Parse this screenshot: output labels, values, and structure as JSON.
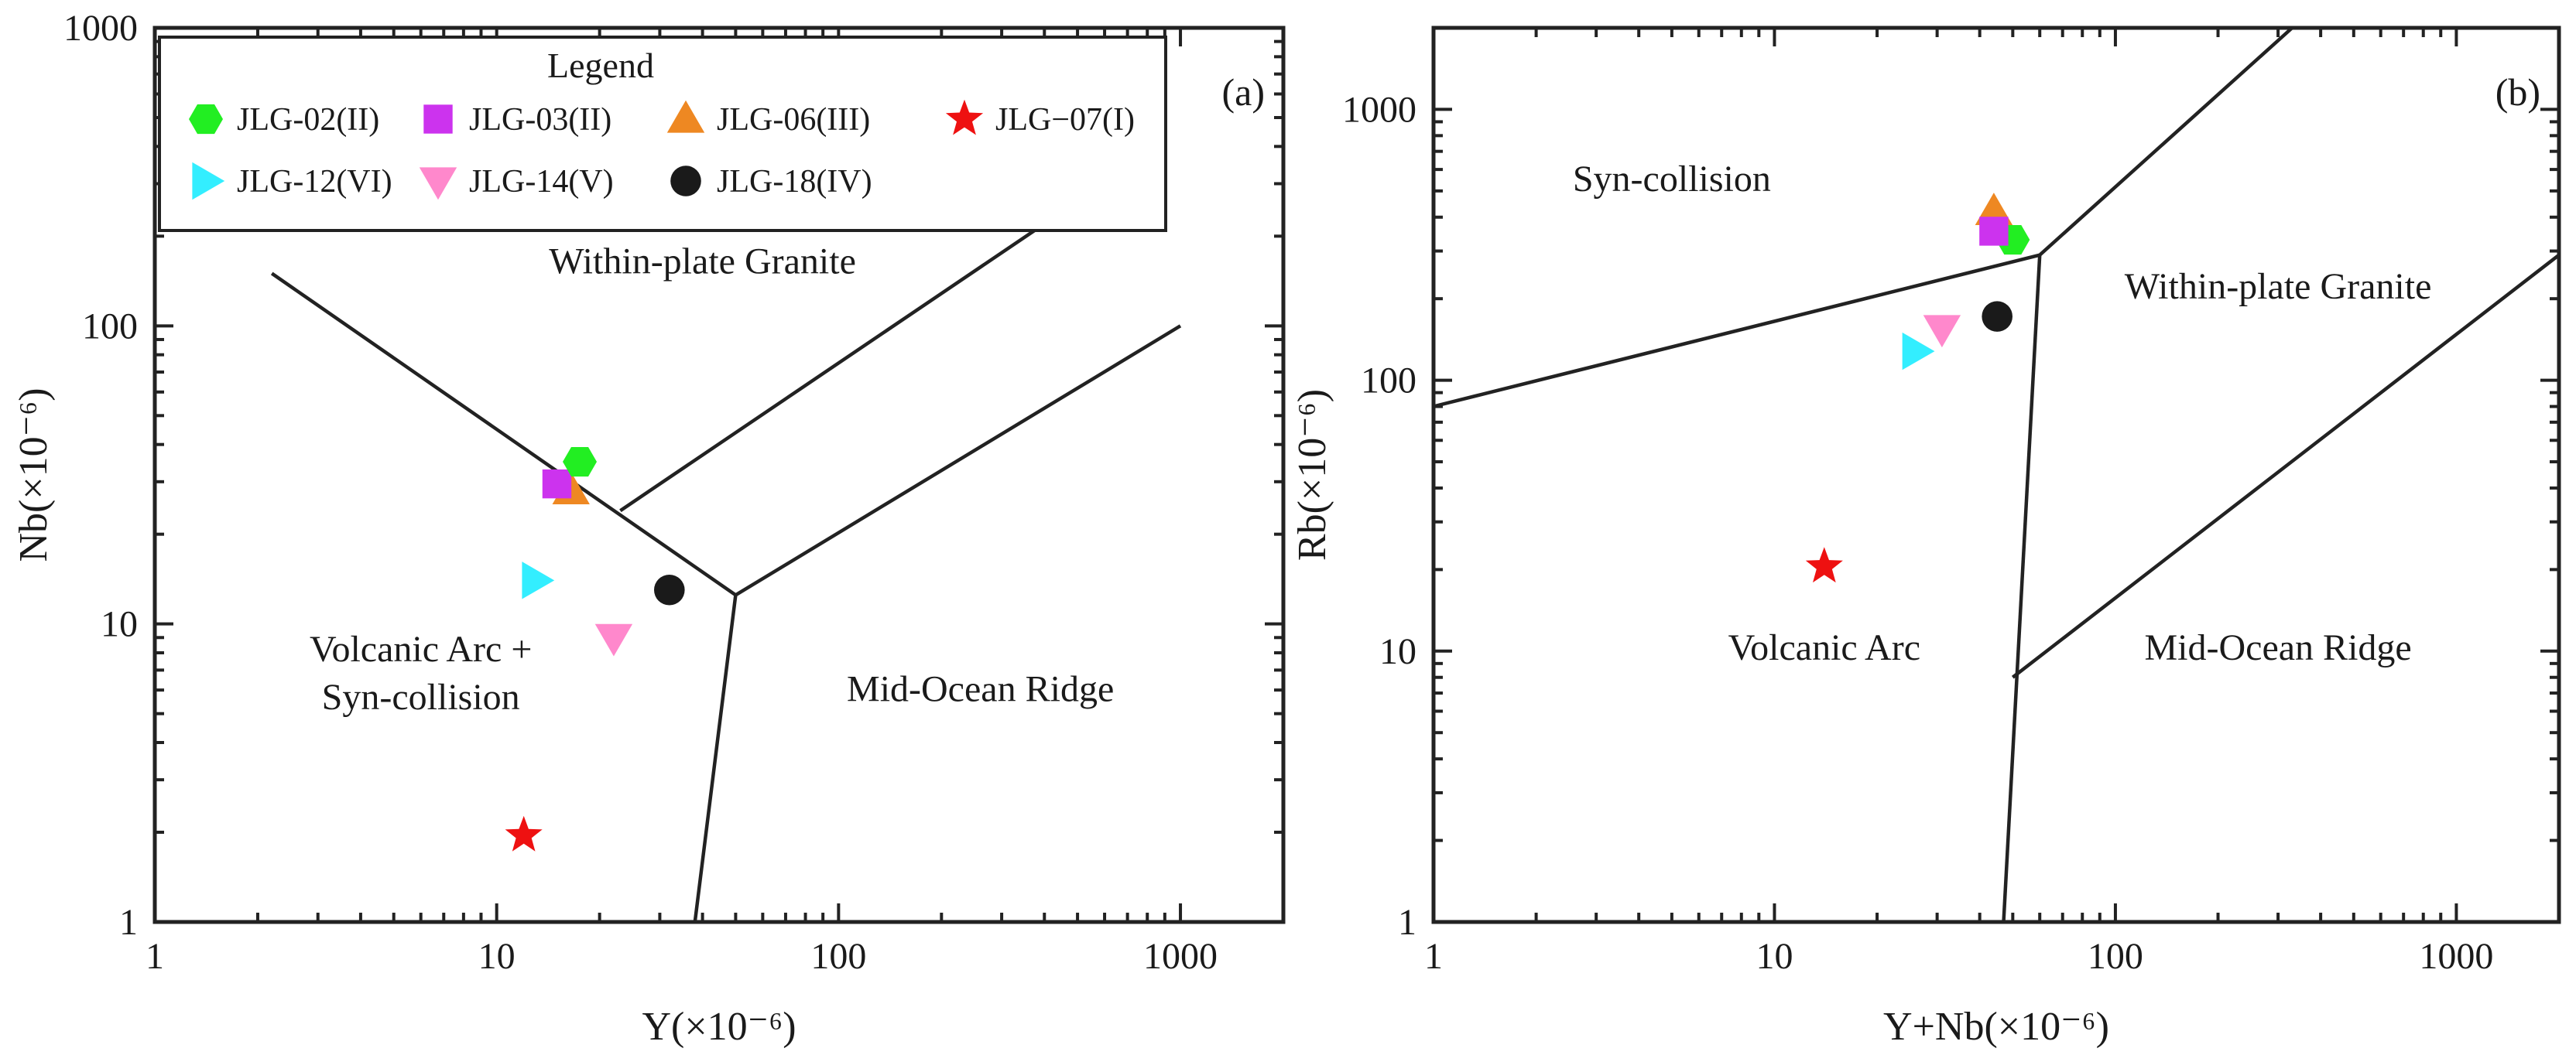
{
  "chart_data": [
    {
      "id": "a",
      "type": "scatter",
      "x_scale": "log",
      "y_scale": "log",
      "xlim": [
        1,
        2000
      ],
      "ylim": [
        1,
        1000
      ],
      "panel_label": "(a)",
      "xlabel": "Y(×10⁻⁶)",
      "ylabel": "Nb(×10⁻⁶)",
      "x_ticks": [
        {
          "value": 1,
          "label": "1"
        },
        {
          "value": 10,
          "label": "10"
        },
        {
          "value": 100,
          "label": "100"
        },
        {
          "value": 1000,
          "label": "1000"
        }
      ],
      "y_ticks": [
        {
          "value": 1,
          "label": "1"
        },
        {
          "value": 10,
          "label": "10"
        },
        {
          "value": 100,
          "label": "100"
        },
        {
          "value": 1000,
          "label": "1000"
        }
      ],
      "boundaries": [
        [
          [
            2.2,
            150
          ],
          [
            50,
            12.5
          ],
          [
            38,
            1
          ]
        ],
        [
          [
            50,
            12.5
          ],
          [
            1000,
            100
          ]
        ],
        [
          [
            23,
            24
          ],
          [
            400,
            220
          ]
        ]
      ],
      "fields": [
        {
          "label": "Within-plate Granite",
          "lines": [
            "Within-plate Granite"
          ],
          "x": 40,
          "y": 150
        },
        {
          "label": "Volcanic Arc + Syn-collision",
          "lines": [
            "Volcanic Arc +",
            "Syn-collision"
          ],
          "x": 6,
          "y": 7.5
        },
        {
          "label": "Mid-Ocean Ridge",
          "lines": [
            "Mid-Ocean Ridge"
          ],
          "x": 260,
          "y": 5.5
        }
      ],
      "legend": {
        "title": "Legend",
        "entries": [
          {
            "label": "JLG-02(II)",
            "marker": "hexagon",
            "color": "#22ee22"
          },
          {
            "label": "JLG-03(II)",
            "marker": "square",
            "color": "#cc33ee"
          },
          {
            "label": "JLG-06(III)",
            "marker": "triangle-up",
            "color": "#ee8822"
          },
          {
            "label": "JLG−07(I)",
            "marker": "star",
            "color": "#ee1111"
          },
          {
            "label": "JLG-12(VI)",
            "marker": "triangle-right",
            "color": "#33eeff"
          },
          {
            "label": "JLG-14(V)",
            "marker": "triangle-down",
            "color": "#ff88cc"
          },
          {
            "label": "JLG-18(IV)",
            "marker": "circle",
            "color": "#1a1a1a"
          }
        ]
      },
      "series": [
        {
          "name": "JLG-12(VI)",
          "marker": "triangle-right",
          "color": "#33eeff",
          "x": 13,
          "y": 14
        },
        {
          "name": "JLG−07(I)",
          "marker": "star",
          "color": "#ee1111",
          "x": 12,
          "y": 1.95
        },
        {
          "name": "JLG-14(V)",
          "marker": "triangle-down",
          "color": "#ff88cc",
          "x": 22,
          "y": 9
        },
        {
          "name": "JLG-18(IV)",
          "marker": "circle",
          "color": "#1a1a1a",
          "x": 32,
          "y": 13
        },
        {
          "name": "JLG-06(III)",
          "marker": "triangle-up",
          "color": "#ee8822",
          "x": 16.5,
          "y": 28
        },
        {
          "name": "JLG-03(II)",
          "marker": "square",
          "color": "#cc33ee",
          "x": 15,
          "y": 29.5
        },
        {
          "name": "JLG-02(II)",
          "marker": "hexagon",
          "color": "#22ee22",
          "x": 17.5,
          "y": 35
        }
      ]
    },
    {
      "id": "b",
      "type": "scatter",
      "x_scale": "log",
      "y_scale": "log",
      "xlim": [
        1,
        2000
      ],
      "ylim": [
        1,
        2000
      ],
      "panel_label": "(b)",
      "xlabel": "Y+Nb(×10⁻⁶)",
      "ylabel": "Rb(×10⁻⁶)",
      "x_ticks": [
        {
          "value": 1,
          "label": "1"
        },
        {
          "value": 10,
          "label": "10"
        },
        {
          "value": 100,
          "label": "100"
        },
        {
          "value": 1000,
          "label": "1000"
        }
      ],
      "y_ticks": [
        {
          "value": 1,
          "label": "1"
        },
        {
          "value": 10,
          "label": "10"
        },
        {
          "value": 100,
          "label": "100"
        },
        {
          "value": 1000,
          "label": "1000"
        }
      ],
      "boundaries": [
        [
          [
            1,
            80
          ],
          [
            60,
            290
          ],
          [
            330,
            2000
          ]
        ],
        [
          [
            60,
            290
          ],
          [
            47,
            1
          ]
        ],
        [
          [
            50,
            8
          ],
          [
            2000,
            290
          ]
        ]
      ],
      "fields": [
        {
          "label": "Syn-collision",
          "lines": [
            "Syn-collision"
          ],
          "x": 5,
          "y": 500
        },
        {
          "label": "Within-plate Granite",
          "lines": [
            "Within-plate Granite"
          ],
          "x": 300,
          "y": 200
        },
        {
          "label": "Volcanic Arc",
          "lines": [
            "Volcanic Arc"
          ],
          "x": 14,
          "y": 9.3
        },
        {
          "label": "Mid-Ocean Ridge",
          "lines": [
            "Mid-Ocean Ridge"
          ],
          "x": 300,
          "y": 9.3
        }
      ],
      "series": [
        {
          "name": "JLG-06(III)",
          "marker": "triangle-up",
          "color": "#ee8822",
          "x": 44,
          "y": 420
        },
        {
          "name": "JLG-02(II)",
          "marker": "hexagon",
          "color": "#22ee22",
          "x": 50,
          "y": 330
        },
        {
          "name": "JLG-03(II)",
          "marker": "square",
          "color": "#cc33ee",
          "x": 44,
          "y": 355
        },
        {
          "name": "JLG-14(V)",
          "marker": "triangle-down",
          "color": "#ff88cc",
          "x": 31,
          "y": 155
        },
        {
          "name": "JLG-18(IV)",
          "marker": "circle",
          "color": "#1a1a1a",
          "x": 45,
          "y": 172
        },
        {
          "name": "JLG-12(VI)",
          "marker": "triangle-right",
          "color": "#33eeff",
          "x": 26,
          "y": 128
        },
        {
          "name": "JLG−07(I)",
          "marker": "star",
          "color": "#ee1111",
          "x": 14,
          "y": 20.5
        }
      ]
    }
  ]
}
